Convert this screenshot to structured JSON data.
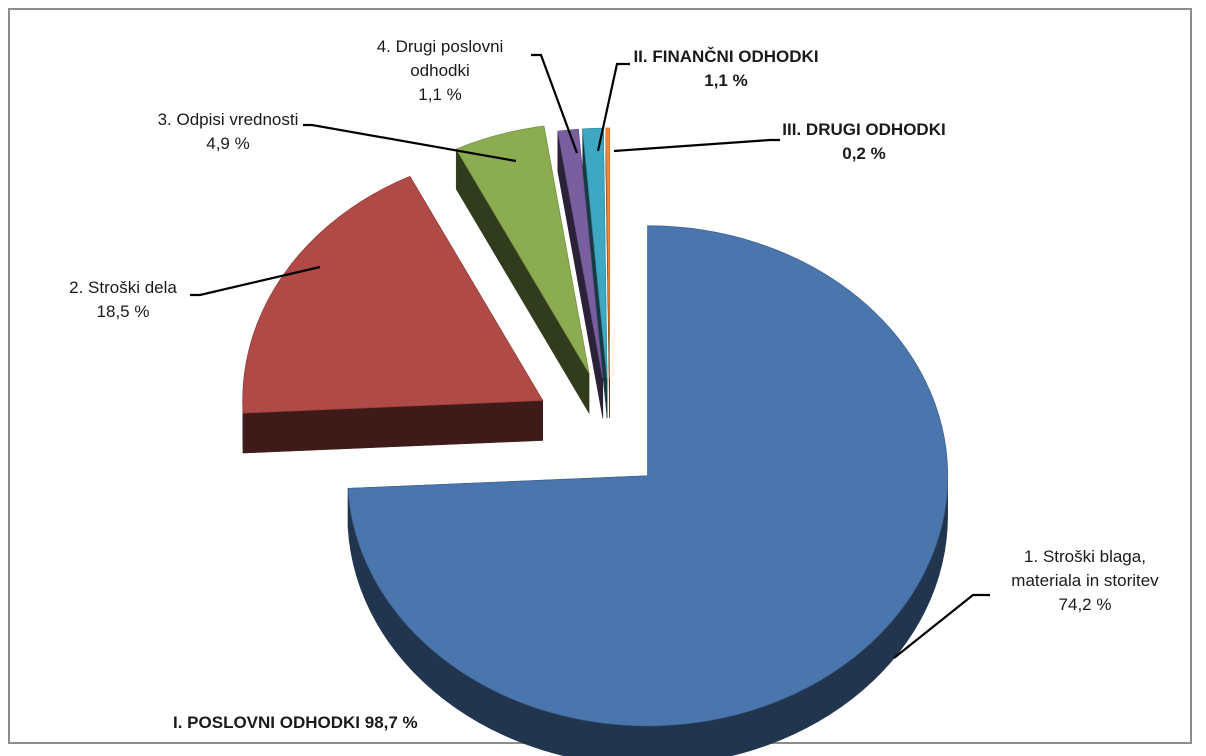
{
  "chart_data": {
    "type": "pie",
    "style": "3d-exploded",
    "slices": [
      {
        "label": "1. Stroški blaga, materiala in storitev",
        "label_lines": [
          "1. Stroški blaga,",
          "materiala in storitev"
        ],
        "value": 74.2,
        "value_label": "74,2 %",
        "color": "#4a76ad",
        "bold": false
      },
      {
        "label": "2. Stroški dela",
        "label_lines": [
          "2. Stroški dela"
        ],
        "value": 18.5,
        "value_label": "18,5 %",
        "color": "#b04a46",
        "bold": false
      },
      {
        "label": "3. Odpisi vrednosti",
        "label_lines": [
          "3. Odpisi vrednosti"
        ],
        "value": 4.9,
        "value_label": "4,9 %",
        "color": "#8cac52",
        "bold": false
      },
      {
        "label": "4. Drugi poslovni odhodki",
        "label_lines": [
          "4. Drugi poslovni",
          "odhodki"
        ],
        "value": 1.1,
        "value_label": "1,1 %",
        "color": "#7a5fa0",
        "bold": false
      },
      {
        "label": "II. FINANČNI ODHODKI",
        "label_lines": [
          "II. FINANČNI ODHODKI"
        ],
        "value": 1.1,
        "value_label": "1,1 %",
        "color": "#3ea7c2",
        "bold": true
      },
      {
        "label": "III. DRUGI ODHODKI",
        "label_lines": [
          "III. DRUGI ODHODKI"
        ],
        "value": 0.2,
        "value_label": "0,2 %",
        "color": "#f0883a",
        "bold": true
      }
    ],
    "annotations": [
      {
        "text": "I. POSLOVNI ODHODKI 98,7 %",
        "bold": true
      }
    ],
    "legend": "none"
  }
}
